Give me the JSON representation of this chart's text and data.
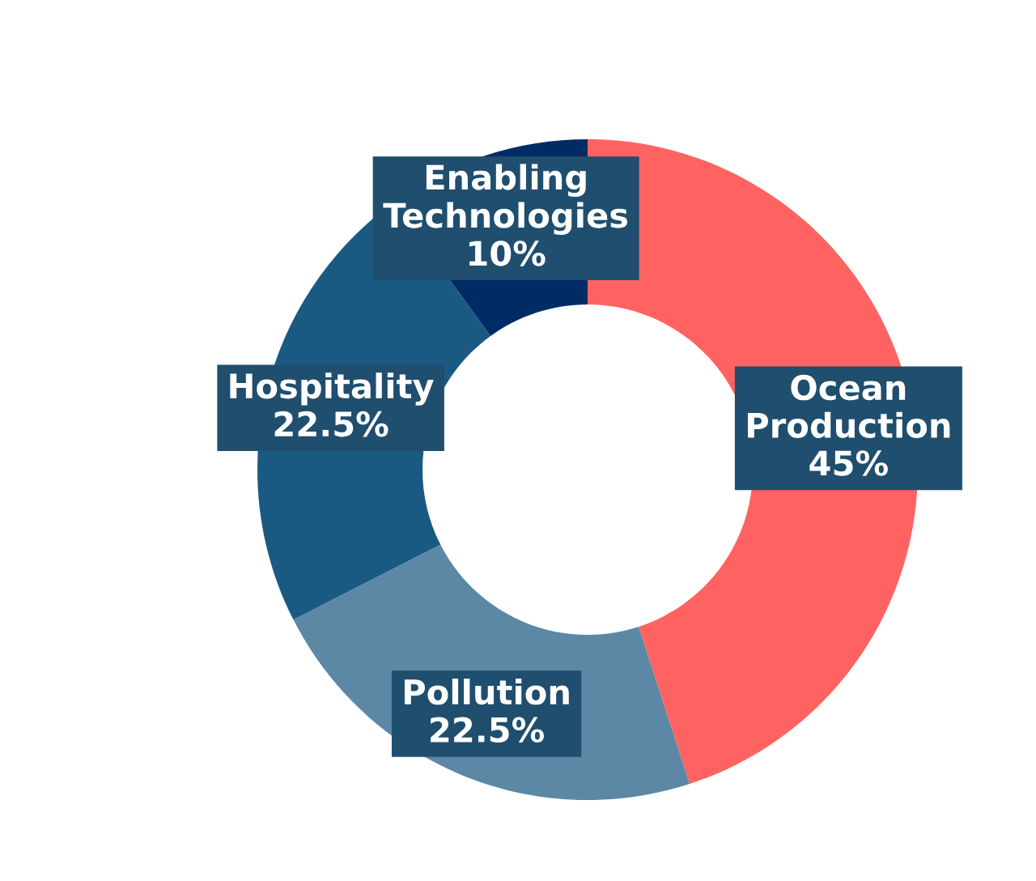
{
  "chart_data": {
    "type": "donut",
    "categories": [
      "Ocean Production",
      "Pollution",
      "Hospitality",
      "Enabling Technologies"
    ],
    "values": [
      45,
      22.5,
      22.5,
      10
    ],
    "colors": [
      "#ff6361",
      "#5c88a6",
      "#1a5a82",
      "#002c66"
    ],
    "value_labels": [
      "45%",
      "22.5%",
      "22.5%",
      "10%"
    ],
    "legend": false
  }
}
